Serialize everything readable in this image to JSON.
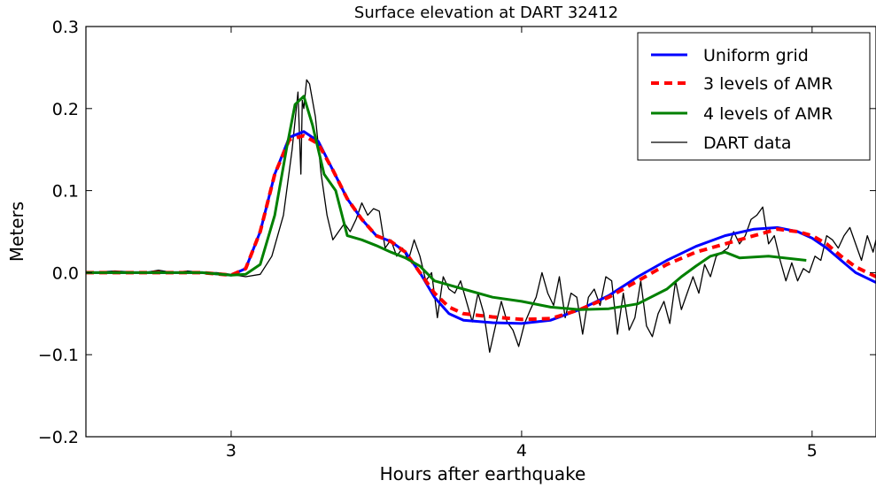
{
  "chart_data": {
    "type": "line",
    "title": "Surface elevation at DART 32412",
    "xlabel": "Hours after earthquake",
    "ylabel": "Meters",
    "xlim": [
      2.5,
      5.22
    ],
    "ylim": [
      -0.2,
      0.3
    ],
    "xticks": [
      3,
      4,
      5
    ],
    "yticks": [
      -0.2,
      -0.1,
      0.0,
      0.1,
      0.2,
      0.3
    ],
    "xtick_labels": [
      "3",
      "4",
      "5"
    ],
    "ytick_labels": [
      "−0.2",
      "−0.1",
      "0.0",
      "0.1",
      "0.2",
      "0.3"
    ],
    "grid": false,
    "legend_position": "top-right",
    "series": [
      {
        "name": "Uniform grid",
        "color": "#0000ff",
        "style": "solid",
        "x": [
          2.5,
          2.9,
          3.0,
          3.05,
          3.1,
          3.15,
          3.2,
          3.25,
          3.3,
          3.35,
          3.4,
          3.45,
          3.5,
          3.55,
          3.6,
          3.65,
          3.7,
          3.75,
          3.8,
          3.9,
          4.0,
          4.1,
          4.2,
          4.3,
          4.4,
          4.5,
          4.6,
          4.7,
          4.8,
          4.88,
          4.95,
          5.0,
          5.05,
          5.1,
          5.15,
          5.22
        ],
        "y": [
          0.0,
          0.0,
          -0.003,
          0.005,
          0.05,
          0.12,
          0.165,
          0.172,
          0.16,
          0.125,
          0.09,
          0.065,
          0.045,
          0.038,
          0.025,
          0.0,
          -0.03,
          -0.05,
          -0.058,
          -0.061,
          -0.062,
          -0.058,
          -0.045,
          -0.028,
          -0.005,
          0.015,
          0.032,
          0.045,
          0.053,
          0.055,
          0.05,
          0.042,
          0.03,
          0.015,
          0.0,
          -0.012
        ]
      },
      {
        "name": "3 levels of AMR",
        "color": "#ff0000",
        "style": "dashed",
        "x": [
          2.5,
          2.9,
          3.0,
          3.05,
          3.1,
          3.15,
          3.2,
          3.25,
          3.3,
          3.35,
          3.4,
          3.45,
          3.5,
          3.55,
          3.6,
          3.65,
          3.7,
          3.75,
          3.8,
          3.9,
          4.0,
          4.1,
          4.2,
          4.3,
          4.4,
          4.5,
          4.6,
          4.7,
          4.8,
          4.88,
          4.95,
          5.0,
          5.05,
          5.1,
          5.15,
          5.22
        ],
        "y": [
          0.0,
          0.0,
          -0.003,
          0.005,
          0.05,
          0.12,
          0.162,
          0.167,
          0.157,
          0.125,
          0.09,
          0.065,
          0.045,
          0.038,
          0.025,
          0.0,
          -0.025,
          -0.042,
          -0.05,
          -0.054,
          -0.057,
          -0.056,
          -0.045,
          -0.03,
          -0.01,
          0.01,
          0.025,
          0.035,
          0.045,
          0.053,
          0.05,
          0.045,
          0.035,
          0.02,
          0.007,
          -0.005
        ]
      },
      {
        "name": "4 levels of AMR",
        "color": "#008000",
        "style": "solid",
        "x": [
          2.5,
          2.9,
          3.0,
          3.05,
          3.1,
          3.15,
          3.19,
          3.22,
          3.25,
          3.28,
          3.32,
          3.36,
          3.4,
          3.45,
          3.5,
          3.55,
          3.6,
          3.65,
          3.7,
          3.8,
          3.9,
          4.0,
          4.1,
          4.2,
          4.3,
          4.4,
          4.5,
          4.55,
          4.6,
          4.65,
          4.7,
          4.75,
          4.85,
          4.98
        ],
        "y": [
          0.0,
          0.0,
          -0.003,
          -0.002,
          0.01,
          0.07,
          0.15,
          0.205,
          0.215,
          0.18,
          0.12,
          0.1,
          0.045,
          0.04,
          0.033,
          0.025,
          0.018,
          0.008,
          -0.01,
          -0.02,
          -0.03,
          -0.035,
          -0.042,
          -0.045,
          -0.044,
          -0.038,
          -0.02,
          -0.005,
          0.008,
          0.02,
          0.025,
          0.018,
          0.02,
          0.015
        ]
      },
      {
        "name": "DART data",
        "color": "#000000",
        "style": "thin",
        "x": [
          2.5,
          2.6,
          2.7,
          2.75,
          2.8,
          2.85,
          2.9,
          2.95,
          3.0,
          3.05,
          3.1,
          3.14,
          3.18,
          3.21,
          3.23,
          3.24,
          3.245,
          3.25,
          3.26,
          3.27,
          3.29,
          3.31,
          3.33,
          3.35,
          3.37,
          3.39,
          3.41,
          3.43,
          3.45,
          3.47,
          3.49,
          3.51,
          3.53,
          3.55,
          3.57,
          3.59,
          3.61,
          3.63,
          3.65,
          3.67,
          3.69,
          3.71,
          3.73,
          3.75,
          3.77,
          3.79,
          3.81,
          3.83,
          3.85,
          3.87,
          3.89,
          3.91,
          3.93,
          3.95,
          3.97,
          3.99,
          4.01,
          4.03,
          4.05,
          4.07,
          4.09,
          4.11,
          4.13,
          4.15,
          4.17,
          4.19,
          4.21,
          4.23,
          4.25,
          4.27,
          4.29,
          4.31,
          4.33,
          4.35,
          4.37,
          4.39,
          4.41,
          4.43,
          4.45,
          4.47,
          4.49,
          4.51,
          4.53,
          4.55,
          4.57,
          4.59,
          4.61,
          4.63,
          4.65,
          4.67,
          4.69,
          4.71,
          4.73,
          4.75,
          4.77,
          4.79,
          4.81,
          4.83,
          4.85,
          4.87,
          4.89,
          4.91,
          4.93,
          4.95,
          4.97,
          4.99,
          5.01,
          5.03,
          5.05,
          5.07,
          5.09,
          5.11,
          5.13,
          5.15,
          5.17,
          5.19,
          5.21,
          5.22
        ],
        "y": [
          0.0,
          0.002,
          0.0,
          0.003,
          0.0,
          0.002,
          0.0,
          0.0,
          -0.002,
          -0.005,
          -0.002,
          0.02,
          0.07,
          0.15,
          0.22,
          0.12,
          0.21,
          0.2,
          0.235,
          0.23,
          0.19,
          0.12,
          0.07,
          0.04,
          0.05,
          0.06,
          0.05,
          0.065,
          0.085,
          0.07,
          0.078,
          0.075,
          0.03,
          0.04,
          0.02,
          0.03,
          0.015,
          0.04,
          0.02,
          -0.01,
          0.0,
          -0.055,
          -0.005,
          -0.02,
          -0.025,
          -0.01,
          -0.035,
          -0.06,
          -0.025,
          -0.05,
          -0.097,
          -0.065,
          -0.035,
          -0.06,
          -0.07,
          -0.09,
          -0.062,
          -0.045,
          -0.03,
          0.0,
          -0.025,
          -0.04,
          -0.005,
          -0.055,
          -0.025,
          -0.03,
          -0.075,
          -0.03,
          -0.02,
          -0.04,
          -0.005,
          -0.01,
          -0.075,
          -0.025,
          -0.07,
          -0.055,
          -0.01,
          -0.065,
          -0.078,
          -0.05,
          -0.035,
          -0.062,
          -0.01,
          -0.045,
          -0.025,
          -0.005,
          -0.025,
          0.01,
          -0.005,
          0.02,
          0.025,
          0.03,
          0.05,
          0.035,
          0.045,
          0.065,
          0.07,
          0.08,
          0.035,
          0.045,
          0.015,
          -0.01,
          0.012,
          -0.01,
          0.005,
          0.0,
          0.02,
          0.015,
          0.045,
          0.04,
          0.03,
          0.045,
          0.055,
          0.035,
          0.015,
          0.045,
          0.025,
          0.04
        ]
      }
    ]
  }
}
